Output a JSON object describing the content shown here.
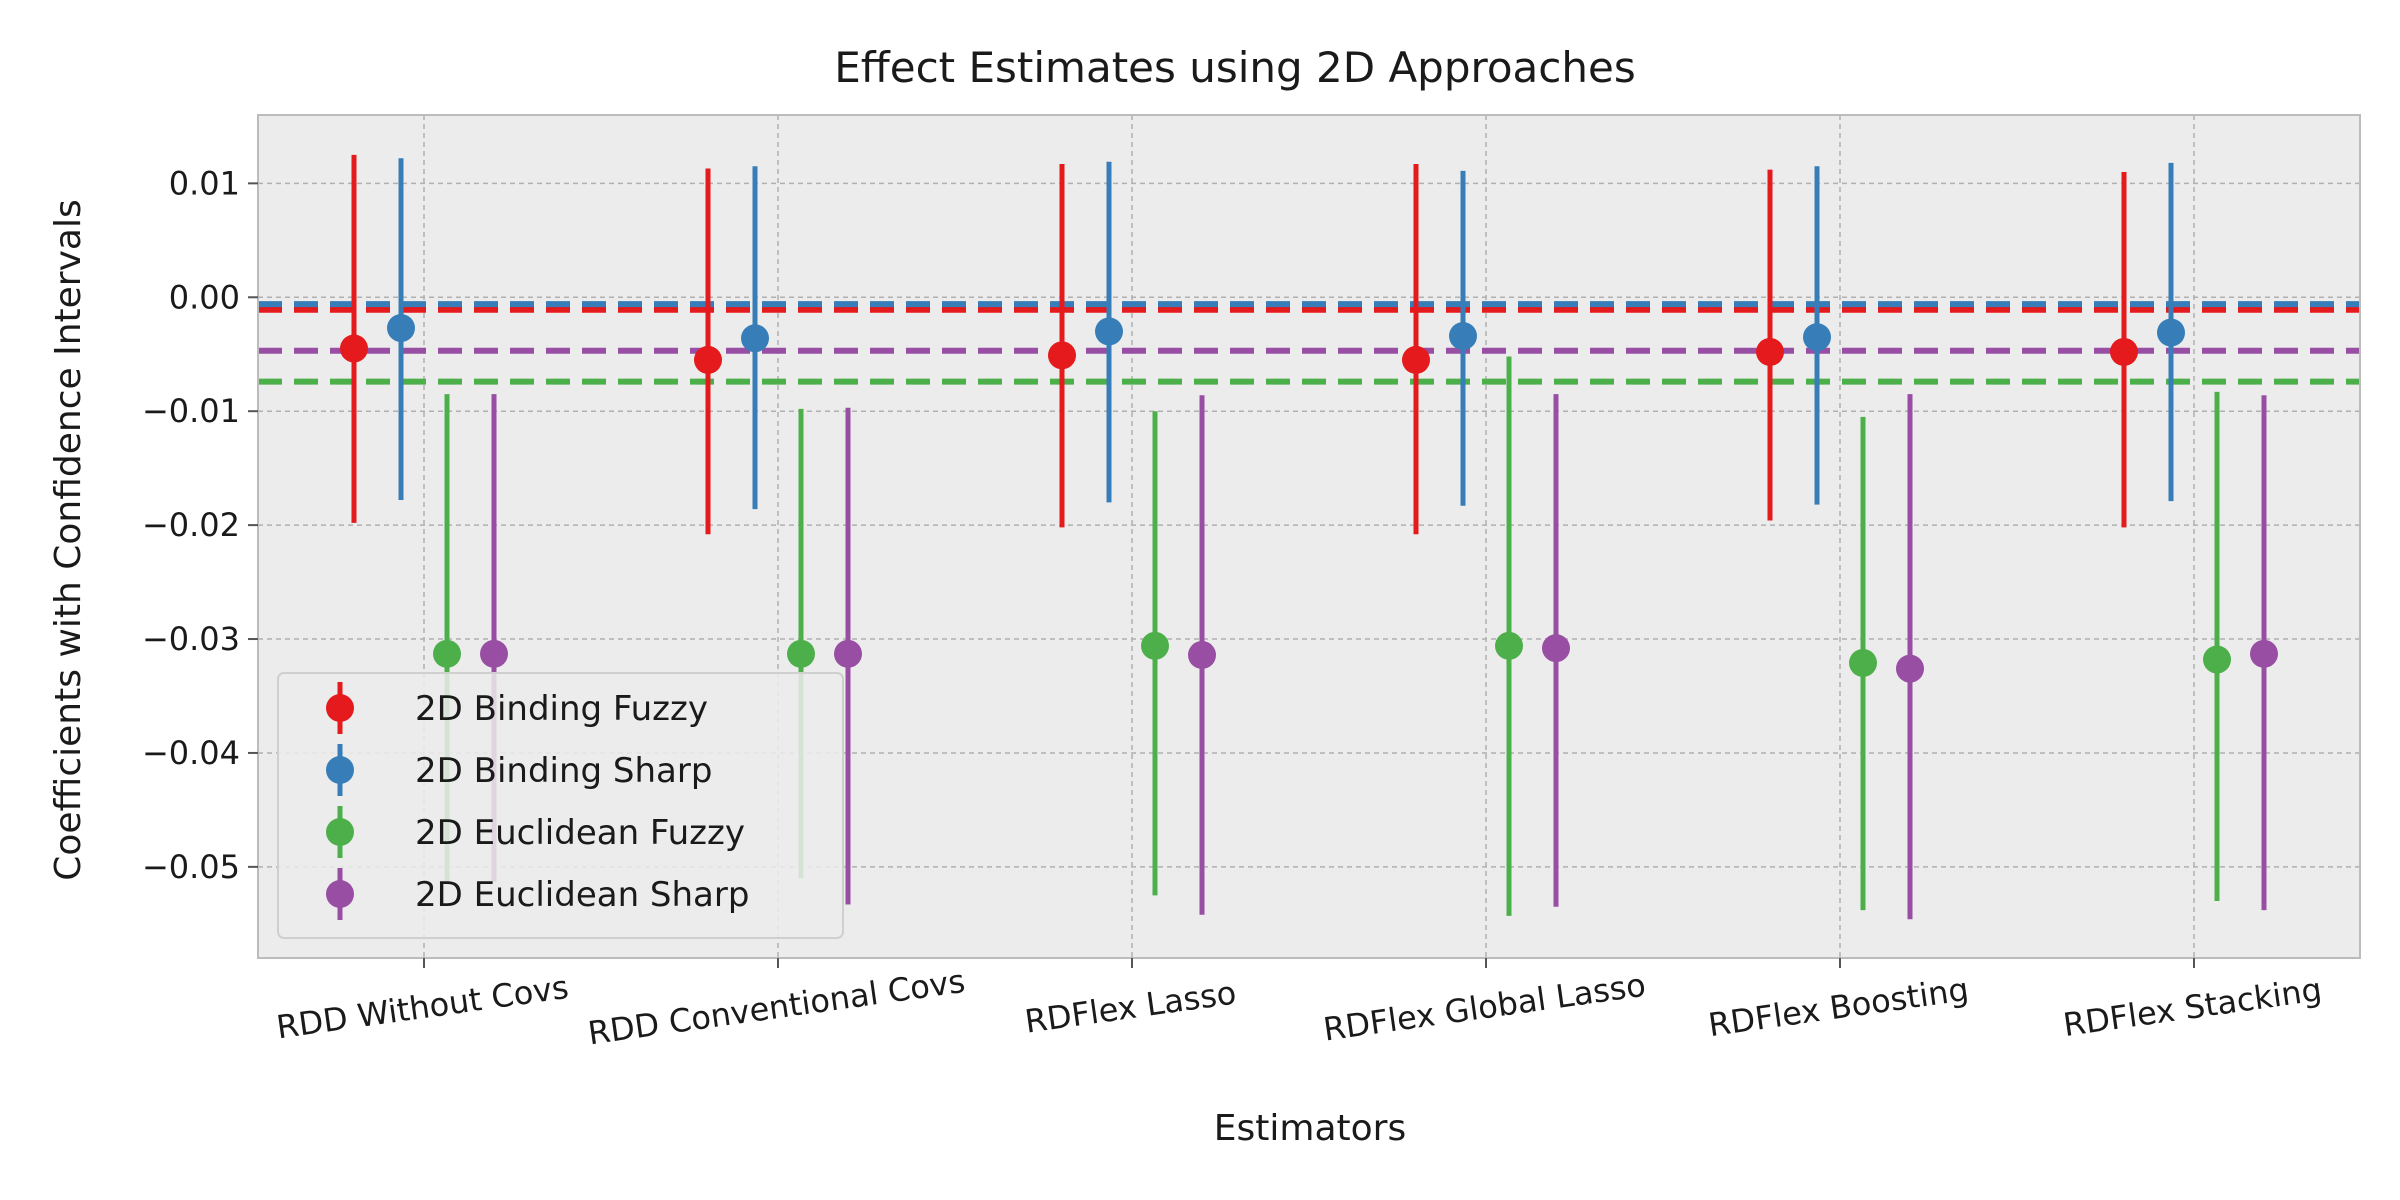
{
  "chart_data": {
    "type": "errorbar",
    "title": "Effect Estimates using 2D Approaches",
    "xlabel": "Estimators",
    "ylabel": "Coefficients with Confidence Intervals",
    "categories": [
      "RDD Without Covs",
      "RDD Conventional Covs",
      "RDFlex Lasso",
      "RDFlex Global Lasso",
      "RDFlex Boosting",
      "RDFlex Stacking"
    ],
    "ylim": [
      -0.058,
      0.016
    ],
    "yticks": [
      0.01,
      0.0,
      -0.01,
      -0.02,
      -0.03,
      -0.04,
      -0.05
    ],
    "ytick_labels": [
      "0.01",
      "0.00",
      "−0.01",
      "−0.02",
      "−0.03",
      "−0.04",
      "−0.05"
    ],
    "grid": true,
    "legend_position": "lower-left",
    "series": [
      {
        "name": "2D Binding Fuzzy",
        "color": "#e41a1c",
        "values": [
          -0.0045,
          -0.0055,
          -0.0051,
          -0.0055,
          -0.0048,
          -0.0048
        ],
        "ci_low": [
          -0.0198,
          -0.0208,
          -0.0202,
          -0.0208,
          -0.0196,
          -0.0202
        ],
        "ci_high": [
          0.0125,
          0.0113,
          0.0117,
          0.0117,
          0.0112,
          0.011
        ],
        "reference_line": -0.0011
      },
      {
        "name": "2D Binding Sharp",
        "color": "#377eb8",
        "values": [
          -0.0027,
          -0.0036,
          -0.003,
          -0.0034,
          -0.0035,
          -0.0031
        ],
        "ci_low": [
          -0.0178,
          -0.0186,
          -0.018,
          -0.0183,
          -0.0182,
          -0.0179
        ],
        "ci_high": [
          0.0122,
          0.0115,
          0.0119,
          0.0111,
          0.0115,
          0.0118
        ],
        "reference_line": -0.0006
      },
      {
        "name": "2D Euclidean Fuzzy",
        "color": "#4daf4a",
        "values": [
          -0.0313,
          -0.0313,
          -0.0306,
          -0.0306,
          -0.0321,
          -0.0318
        ],
        "ci_low": [
          -0.0513,
          -0.051,
          -0.0525,
          -0.0543,
          -0.0538,
          -0.053
        ],
        "ci_high": [
          -0.0085,
          -0.0098,
          -0.01,
          -0.0052,
          -0.0105,
          -0.0083
        ],
        "reference_line": -0.0074
      },
      {
        "name": "2D Euclidean Sharp",
        "color": "#984ea3",
        "values": [
          -0.0313,
          -0.0313,
          -0.0314,
          -0.0308,
          -0.0326,
          -0.0313
        ],
        "ci_low": [
          -0.0513,
          -0.0533,
          -0.0542,
          -0.0535,
          -0.0546,
          -0.0538
        ],
        "ci_high": [
          -0.0085,
          -0.0097,
          -0.0086,
          -0.0085,
          -0.0085,
          -0.0086
        ],
        "reference_line": -0.0047
      }
    ]
  }
}
